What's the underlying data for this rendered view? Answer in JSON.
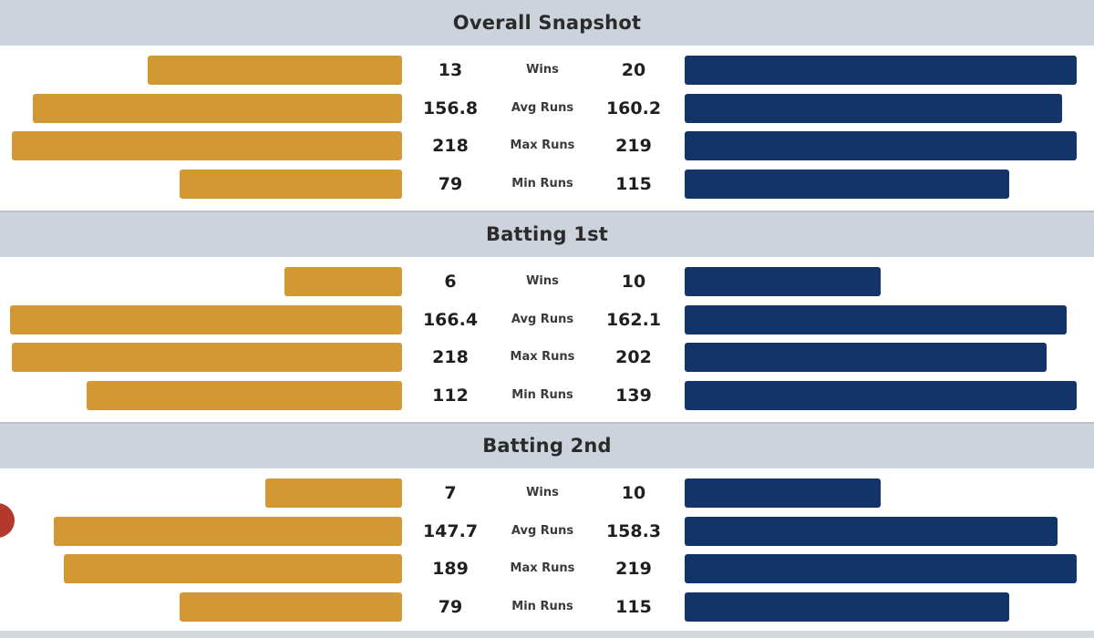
{
  "colors": {
    "left_team": "#d19833",
    "right_team": "#133468",
    "header_bg": "#ccd3dc"
  },
  "chart_data": {
    "type": "bar",
    "orientation": "diverging-horizontal",
    "metrics": [
      "Wins",
      "Avg Runs",
      "Max Runs",
      "Min Runs"
    ],
    "sections": [
      {
        "title": "Overall Snapshot",
        "rows": [
          {
            "metric": "Wins",
            "left": "13",
            "right": "20"
          },
          {
            "metric": "Avg Runs",
            "left": "156.8",
            "right": "160.2"
          },
          {
            "metric": "Max Runs",
            "left": "218",
            "right": "219"
          },
          {
            "metric": "Min Runs",
            "left": "79",
            "right": "115"
          }
        ]
      },
      {
        "title": "Batting 1st",
        "rows": [
          {
            "metric": "Wins",
            "left": "6",
            "right": "10"
          },
          {
            "metric": "Avg Runs",
            "left": "166.4",
            "right": "162.1"
          },
          {
            "metric": "Max Runs",
            "left": "218",
            "right": "202"
          },
          {
            "metric": "Min Runs",
            "left": "112",
            "right": "139"
          }
        ]
      },
      {
        "title": "Batting 2nd",
        "rows": [
          {
            "metric": "Wins",
            "left": "7",
            "right": "10"
          },
          {
            "metric": "Avg Runs",
            "left": "147.7",
            "right": "158.3"
          },
          {
            "metric": "Max Runs",
            "left": "189",
            "right": "219"
          },
          {
            "metric": "Min Runs",
            "left": "79",
            "right": "115"
          }
        ]
      }
    ]
  }
}
